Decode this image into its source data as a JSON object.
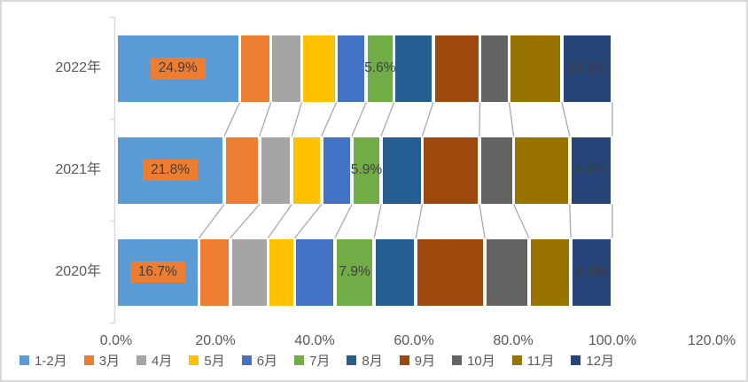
{
  "chart_data": {
    "type": "bar",
    "subtype": "stacked-horizontal-100pct",
    "orientation": "horizontal",
    "title": "",
    "categories": [
      "2022年",
      "2021年",
      "2020年"
    ],
    "series": [
      {
        "name": "1-2月",
        "color": "#5B9BD5",
        "values": [
          24.9,
          21.8,
          16.7
        ],
        "labels": [
          "24.9%",
          "21.8%",
          "16.7%"
        ],
        "label_style": "filled-orange"
      },
      {
        "name": "3月",
        "color": "#ED7D31",
        "values": [
          6.3,
          7.1,
          6.3
        ]
      },
      {
        "name": "4月",
        "color": "#A5A5A5",
        "values": [
          6.2,
          6.5,
          7.6
        ]
      },
      {
        "name": "5月",
        "color": "#FFC000",
        "values": [
          7.0,
          6.0,
          5.4
        ]
      },
      {
        "name": "6月",
        "color": "#4472C4",
        "values": [
          6.0,
          6.1,
          8.1
        ]
      },
      {
        "name": "7月",
        "color": "#70AD47",
        "values": [
          5.6,
          5.9,
          7.9
        ],
        "labels": [
          "5.6%",
          "5.9%",
          "7.9%"
        ],
        "label_style": "plain"
      },
      {
        "name": "8月",
        "color": "#255E91",
        "values": [
          7.9,
          8.3,
          8.4
        ]
      },
      {
        "name": "9月",
        "color": "#9E480E",
        "values": [
          9.4,
          11.5,
          13.9
        ]
      },
      {
        "name": "10月",
        "color": "#636363",
        "values": [
          5.9,
          6.9,
          8.9
        ]
      },
      {
        "name": "11月",
        "color": "#997300",
        "values": [
          10.6,
          11.3,
          8.4
        ]
      },
      {
        "name": "12月",
        "color": "#264478",
        "values": [
          10.2,
          8.6,
          8.4
        ],
        "labels": [
          "10.2%",
          "8.6%",
          "8.4%"
        ],
        "label_style": "plain"
      }
    ],
    "x_axis": {
      "min": 0,
      "max": 120,
      "tick_step": 20,
      "tick_labels": [
        "0.0%",
        "20.0%",
        "40.0%",
        "60.0%",
        "80.0%",
        "100.0%",
        "120.0%"
      ]
    },
    "legend_position": "bottom",
    "grid": false,
    "series_connector_lines": true,
    "colors": {
      "axis_line": "#D9D9D9",
      "connector_line": "#A6A6A6",
      "axis_text": "#595959",
      "data_label_text": "#404040",
      "filled_label_bg": "#ED7D31",
      "chart_border": "#D9D9D9"
    }
  }
}
